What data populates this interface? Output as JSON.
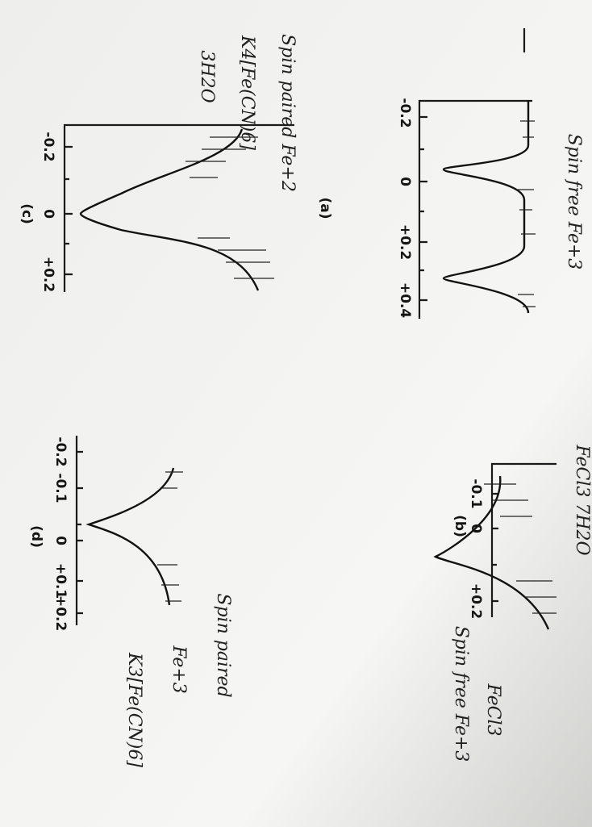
{
  "panels": [
    {
      "label": "(a)",
      "ticks": [
        "-0.2",
        "0",
        "+0.2",
        "+0.4"
      ]
    },
    {
      "label": "(b)",
      "ticks": [
        "-0.1",
        "0",
        "+0.2"
      ]
    },
    {
      "label": "(c)",
      "ticks": [
        "-0.2",
        "0",
        "+0.2"
      ]
    },
    {
      "label": "(d)",
      "ticks": [
        "-0.2",
        "-0.1",
        "0",
        "+0.1",
        "+0.2"
      ]
    }
  ],
  "notes": {
    "top": "Spin free Fe+3",
    "top_compound": "FeCl3 7H2O",
    "left_title": "Spin paired Fe+2",
    "left_compound": "K4[Fe(CN)6]",
    "left_hydrate": "3H2O",
    "right_title": "Spin free Fe+3",
    "right_compound": "FeCl3",
    "bottom_title": "Spin paired",
    "bottom_ion": "Fe+3",
    "bottom_compound": "K3[Fe(CN)6]"
  }
}
